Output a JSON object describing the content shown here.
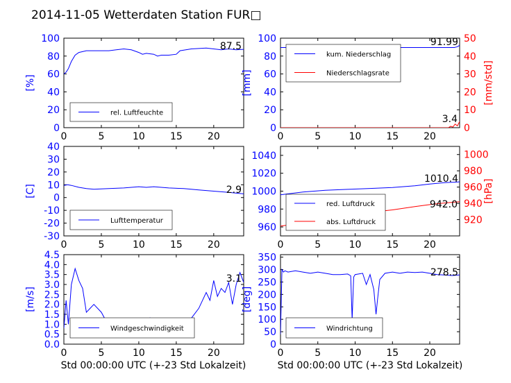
{
  "figure": {
    "title": "2014-11-05 Wetterdaten Station FUR□",
    "xlabel": "Std 00:00:00 UTC (+-23 Std Lokalzeit)",
    "colors": {
      "left": "#0000ff",
      "right": "#ff0000",
      "text": "#000000",
      "wind_light": "#8080ff"
    }
  },
  "chart_data": [
    {
      "type": "line",
      "id": "humidity",
      "ylabel": "[%]",
      "xlim": [
        0,
        24
      ],
      "ylim": [
        0,
        100
      ],
      "xticks": [
        0,
        5,
        10,
        15,
        20
      ],
      "yticks": [
        0,
        20,
        40,
        60,
        80,
        100
      ],
      "legend": "bottom-left",
      "grid": false,
      "series": [
        {
          "name": "rel. Luftfeuchte",
          "color": "#0000ff",
          "axis": "left",
          "points": [
            [
              0,
              60
            ],
            [
              0.3,
              62
            ],
            [
              0.6,
              66
            ],
            [
              1,
              74
            ],
            [
              1.5,
              81
            ],
            [
              2,
              84
            ],
            [
              3,
              86
            ],
            [
              4,
              86
            ],
            [
              5,
              86
            ],
            [
              6,
              86
            ],
            [
              7,
              87
            ],
            [
              8,
              88
            ],
            [
              9,
              87
            ],
            [
              10,
              84
            ],
            [
              10.5,
              82
            ],
            [
              11,
              83
            ],
            [
              12,
              82
            ],
            [
              12.5,
              80
            ],
            [
              13,
              81
            ],
            [
              14,
              81
            ],
            [
              15,
              82
            ],
            [
              15.5,
              86
            ],
            [
              17,
              88
            ],
            [
              19,
              89
            ],
            [
              20,
              88
            ],
            [
              21,
              87
            ],
            [
              22,
              88
            ],
            [
              23,
              87
            ],
            [
              24,
              87.5
            ]
          ]
        }
      ],
      "annotations": [
        "87.5"
      ]
    },
    {
      "type": "line",
      "id": "precip",
      "ylabel": "[mm]",
      "y2label": "[mm/std]",
      "xlim": [
        0,
        24
      ],
      "ylim": [
        0,
        100
      ],
      "y2lim": [
        0,
        50
      ],
      "xticks": [
        0,
        5,
        10,
        15,
        20
      ],
      "yticks": [
        0,
        20,
        40,
        60,
        80,
        100
      ],
      "y2ticks": [
        0,
        10,
        20,
        30,
        40,
        50
      ],
      "legend": "top-left",
      "grid": false,
      "series": [
        {
          "name": "kum. Niederschlag",
          "color": "#0000ff",
          "axis": "left",
          "points": [
            [
              0,
              89.5
            ],
            [
              23.3,
              89.5
            ],
            [
              23.7,
              90.5
            ],
            [
              24,
              91.99
            ]
          ]
        },
        {
          "name": "Niederschlagsrate",
          "color": "#ff0000",
          "axis": "right",
          "points": [
            [
              0,
              0
            ],
            [
              22.5,
              0
            ],
            [
              22.8,
              0.8
            ],
            [
              23.1,
              0.3
            ],
            [
              23.4,
              2
            ],
            [
              23.7,
              1
            ],
            [
              24,
              3.4
            ]
          ]
        }
      ],
      "annotations": [
        "91.99",
        "3.4"
      ]
    },
    {
      "type": "line",
      "id": "temperature",
      "ylabel": "[C]",
      "xlim": [
        0,
        24
      ],
      "ylim": [
        -30,
        40
      ],
      "xticks": [
        0,
        5,
        10,
        15,
        20
      ],
      "yticks": [
        -30,
        -20,
        -10,
        0,
        10,
        20,
        30,
        40
      ],
      "legend": "bottom-left",
      "grid": false,
      "series": [
        {
          "name": "Lufttemperatur",
          "color": "#0000ff",
          "axis": "left",
          "points": [
            [
              0,
              9.5
            ],
            [
              0.5,
              10
            ],
            [
              1,
              9.5
            ],
            [
              2,
              8
            ],
            [
              3,
              7
            ],
            [
              4,
              6.5
            ],
            [
              6,
              7
            ],
            [
              8,
              7.5
            ],
            [
              10,
              8.5
            ],
            [
              11,
              8
            ],
            [
              12,
              8.5
            ],
            [
              13,
              8
            ],
            [
              14,
              7.5
            ],
            [
              16,
              7
            ],
            [
              18,
              6
            ],
            [
              20,
              5
            ],
            [
              22,
              4
            ],
            [
              24,
              2.9
            ]
          ]
        }
      ],
      "annotations": [
        "2.9"
      ]
    },
    {
      "type": "line",
      "id": "pressure",
      "ylabel": "",
      "y2label": "[hPa]",
      "xlim": [
        0,
        24
      ],
      "ylim": [
        950,
        1050
      ],
      "y2lim": [
        900,
        1010
      ],
      "xticks": [
        0,
        5,
        10,
        15,
        20
      ],
      "yticks": [
        960,
        980,
        1000,
        1020,
        1040
      ],
      "y2ticks": [
        920,
        940,
        960,
        980,
        1000
      ],
      "legend": "bottom-left",
      "grid": false,
      "series": [
        {
          "name": "red. Luftdruck",
          "color": "#0000ff",
          "axis": "left",
          "points": [
            [
              0,
              996
            ],
            [
              1,
              997
            ],
            [
              3,
              999
            ],
            [
              6,
              1001
            ],
            [
              9,
              1002
            ],
            [
              12,
              1003
            ],
            [
              15,
              1004
            ],
            [
              18,
              1006
            ],
            [
              20,
              1008
            ],
            [
              22,
              1009.5
            ],
            [
              24,
              1010.4
            ]
          ]
        },
        {
          "name": "abs. Luftdruck",
          "color": "#ff0000",
          "axis": "right",
          "points": [
            [
              0,
              912
            ],
            [
              3,
              916
            ],
            [
              6,
              922
            ],
            [
              9,
              926
            ],
            [
              12,
              929
            ],
            [
              15,
              932
            ],
            [
              18,
              936
            ],
            [
              20,
              938.5
            ],
            [
              22,
              940.5
            ],
            [
              24,
              942
            ]
          ]
        }
      ],
      "annotations": [
        "1010.4",
        "942.0"
      ]
    },
    {
      "type": "line",
      "id": "wind",
      "ylabel": "[m/s]",
      "xlim": [
        0,
        24
      ],
      "ylim": [
        0,
        4.5
      ],
      "xticks": [
        0,
        5,
        10,
        15,
        20
      ],
      "yticks": [
        0.0,
        0.5,
        1.0,
        1.5,
        2.0,
        2.5,
        3.0,
        3.5,
        4.0,
        4.5
      ],
      "legend": "bottom-left",
      "grid": false,
      "series": [
        {
          "name": "Windgeschwindigkeit",
          "color": "#0000ff",
          "axis": "left",
          "points": [
            [
              0,
              0.8
            ],
            [
              0.3,
              2.2
            ],
            [
              0.6,
              1.0
            ],
            [
              1,
              3.0
            ],
            [
              1.5,
              3.8
            ],
            [
              2,
              3.2
            ],
            [
              2.5,
              2.8
            ],
            [
              3,
              1.6
            ],
            [
              3.5,
              1.8
            ],
            [
              4,
              2.0
            ],
            [
              5,
              1.6
            ],
            [
              6,
              0.9
            ],
            [
              6.5,
              1.2
            ],
            [
              7,
              0.6
            ],
            [
              8,
              1.1
            ],
            [
              8.5,
              0.8
            ],
            [
              9,
              0.5
            ],
            [
              9.5,
              1.2
            ],
            [
              10,
              0.8
            ],
            [
              10.5,
              1.1
            ],
            [
              11,
              0.5
            ],
            [
              11.5,
              1.3
            ],
            [
              12,
              0.8
            ],
            [
              13,
              1.0
            ],
            [
              14,
              0.8
            ],
            [
              15,
              0.9
            ],
            [
              16,
              0.7
            ],
            [
              17,
              1.3
            ],
            [
              18,
              1.8
            ],
            [
              19,
              2.6
            ],
            [
              19.5,
              2.2
            ],
            [
              20,
              3.2
            ],
            [
              20.5,
              2.4
            ],
            [
              21,
              2.8
            ],
            [
              21.5,
              2.6
            ],
            [
              22,
              3.1
            ],
            [
              22.5,
              2.0
            ],
            [
              23,
              3.0
            ],
            [
              23.5,
              3.6
            ],
            [
              24,
              3.1
            ]
          ]
        }
      ],
      "annotations": [
        "3.1"
      ]
    },
    {
      "type": "line",
      "id": "direction",
      "ylabel": "[deg]",
      "xlim": [
        0,
        24
      ],
      "ylim": [
        0,
        360
      ],
      "xticks": [
        0,
        5,
        10,
        15,
        20
      ],
      "yticks": [
        0,
        50,
        100,
        150,
        200,
        250,
        300,
        350
      ],
      "legend": "bottom-left",
      "grid": false,
      "series": [
        {
          "name": "Windrichtung",
          "color": "#0000ff",
          "axis": "left",
          "points": [
            [
              0,
              40
            ],
            [
              0.2,
              300
            ],
            [
              0.4,
              290
            ],
            [
              0.6,
              295
            ],
            [
              1,
              290
            ],
            [
              2,
              295
            ],
            [
              3,
              290
            ],
            [
              4,
              285
            ],
            [
              5,
              290
            ],
            [
              6,
              285
            ],
            [
              7,
              280
            ],
            [
              8,
              280
            ],
            [
              9,
              282
            ],
            [
              9.4,
              275
            ],
            [
              9.6,
              100
            ],
            [
              9.8,
              270
            ],
            [
              10,
              280
            ],
            [
              11,
              285
            ],
            [
              11.5,
              240
            ],
            [
              12,
              280
            ],
            [
              12.5,
              220
            ],
            [
              12.8,
              120
            ],
            [
              13,
              180
            ],
            [
              13.3,
              260
            ],
            [
              14,
              285
            ],
            [
              15,
              290
            ],
            [
              16,
              285
            ],
            [
              17,
              290
            ],
            [
              18,
              288
            ],
            [
              19,
              290
            ],
            [
              20,
              285
            ],
            [
              21,
              280
            ],
            [
              22,
              278
            ],
            [
              23,
              276
            ],
            [
              24,
              278.5
            ]
          ]
        }
      ],
      "annotations": [
        "278.5"
      ]
    }
  ]
}
